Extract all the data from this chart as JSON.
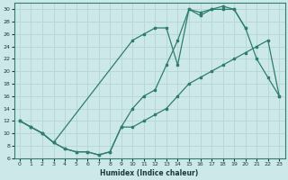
{
  "xlabel": "Humidex (Indice chaleur)",
  "background_color": "#cde8e8",
  "line_color": "#2e7d6e",
  "grid_color": "#b8d8d8",
  "ylim": [
    6,
    31
  ],
  "xlim": [
    -0.5,
    23.5
  ],
  "yticks": [
    6,
    8,
    10,
    12,
    14,
    16,
    18,
    20,
    22,
    24,
    26,
    28,
    30
  ],
  "xticks": [
    0,
    1,
    2,
    3,
    4,
    5,
    6,
    7,
    8,
    9,
    10,
    11,
    12,
    13,
    14,
    15,
    16,
    17,
    18,
    19,
    20,
    21,
    22,
    23
  ],
  "line_dip_x": [
    0,
    1,
    2,
    3,
    4,
    5,
    6,
    7,
    8,
    9,
    10,
    11,
    12,
    13,
    14,
    15,
    16,
    17,
    18,
    19,
    20,
    21,
    22,
    23
  ],
  "line_dip_y": [
    12,
    11,
    10,
    8.5,
    7.5,
    7,
    7,
    6.5,
    7,
    11,
    11,
    12,
    13,
    14,
    16,
    18,
    19,
    20,
    21,
    22,
    23,
    24,
    25,
    16
  ],
  "line_peak_x": [
    0,
    1,
    2,
    3,
    4,
    5,
    6,
    7,
    8,
    9,
    10,
    11,
    12,
    13,
    14,
    15,
    16,
    17,
    18,
    19,
    20,
    21,
    22,
    23
  ],
  "line_peak_y": [
    12,
    11,
    10,
    8.5,
    7.5,
    7,
    7,
    6.5,
    7,
    11,
    14,
    16,
    17,
    21,
    25,
    30,
    29,
    30,
    30,
    30,
    27,
    22,
    19,
    16
  ],
  "line_top_x": [
    0,
    1,
    2,
    3,
    10,
    11,
    12,
    13,
    14,
    15,
    16,
    17,
    18,
    19,
    20
  ],
  "line_top_y": [
    12,
    11,
    10,
    8.5,
    25,
    26,
    27,
    27,
    21,
    30,
    29.5,
    30,
    30.5,
    30,
    27
  ]
}
